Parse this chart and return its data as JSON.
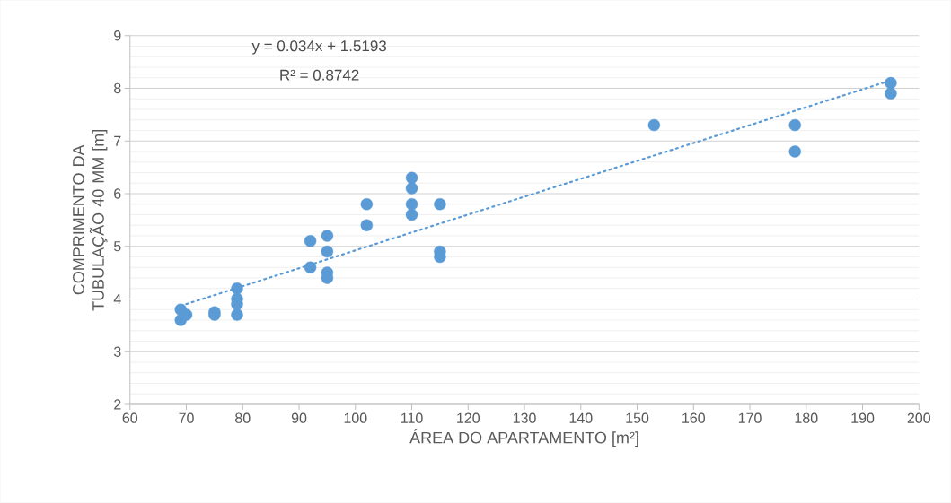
{
  "chart_data": {
    "type": "scatter",
    "xlabel": "ÁREA DO APARTAMENTO [m²]",
    "ylabel": "COMPRIMENTO DA TUBULAÇÃO 40 MM [m]",
    "xlim": [
      60,
      200
    ],
    "xticks": [
      60,
      70,
      80,
      90,
      100,
      110,
      120,
      130,
      140,
      150,
      160,
      170,
      180,
      190,
      200
    ],
    "ylim": [
      2,
      9
    ],
    "yticks": [
      2,
      3,
      4,
      5,
      6,
      7,
      8,
      9
    ],
    "grid": "y",
    "annotations": [
      "y = 0.034x + 1.5193",
      "R² = 0.8742"
    ],
    "series": [
      {
        "color": "#5b9bd5",
        "marker": "circle",
        "x": [
          69,
          69,
          70,
          75,
          75,
          79,
          79,
          79,
          79,
          92,
          92,
          95,
          95,
          95,
          95,
          102,
          102,
          110,
          110,
          110,
          110,
          115,
          115,
          115,
          153,
          178,
          178,
          195,
          195
        ],
        "values": [
          3.8,
          3.6,
          3.7,
          3.75,
          3.7,
          4.2,
          4.0,
          3.9,
          3.7,
          5.1,
          4.6,
          5.2,
          4.9,
          4.5,
          4.4,
          5.8,
          5.4,
          6.3,
          6.1,
          5.8,
          5.6,
          5.8,
          4.9,
          4.8,
          7.3,
          7.3,
          6.8,
          8.1,
          7.9
        ]
      },
      {
        "type": "line",
        "color": "#5b9bd5",
        "marker": "none",
        "line_style": "dotted",
        "x": [
          69,
          195
        ],
        "values": [
          3.87,
          8.15
        ]
      }
    ]
  }
}
